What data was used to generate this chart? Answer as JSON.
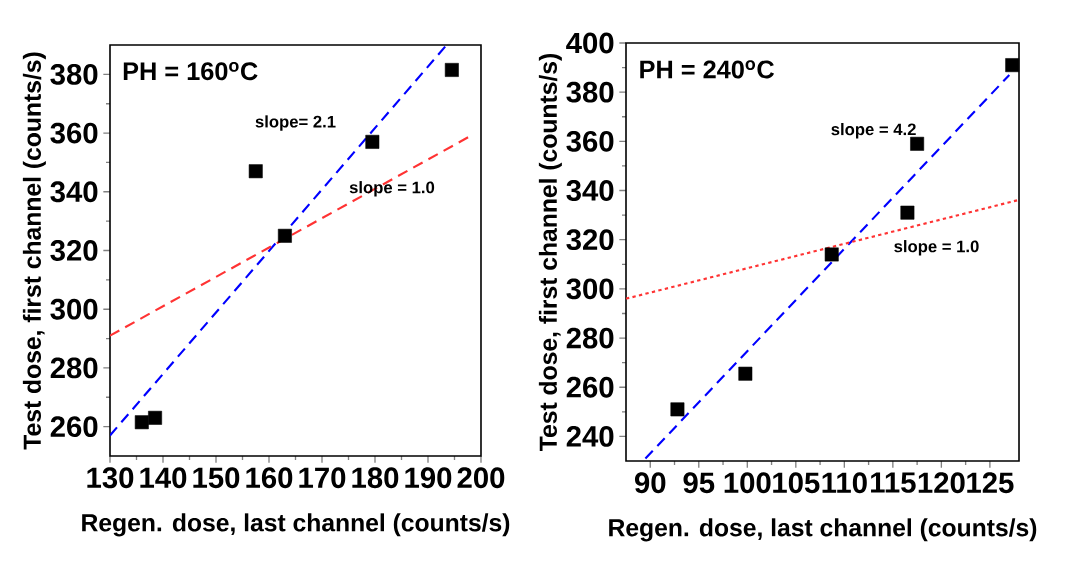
{
  "chart_data": [
    {
      "type": "scatter",
      "title": "PH = 160$^{o}$C",
      "xlabel": "Regen. dose, last channel (counts/s)",
      "ylabel": "Test dose, first channel (counts/s)",
      "xlim": [
        130,
        200
      ],
      "ylim": [
        250,
        390
      ],
      "xticks": [
        130,
        140,
        150,
        160,
        170,
        180,
        190,
        200
      ],
      "yticks": [
        260,
        280,
        300,
        320,
        340,
        360,
        380
      ],
      "grid": false,
      "marker": "square",
      "series": [
        {
          "color": "#000000",
          "x": [
            136,
            138.5,
            157.5,
            163,
            179.5,
            194.5
          ],
          "values": [
            261.5,
            263,
            347,
            325,
            357,
            381.5
          ]
        },
        {
          "type": "line",
          "color": "#0000ff",
          "line_style": "dashed",
          "marker": "none",
          "x": [
            130,
            193.5
          ],
          "values": [
            257,
            390
          ]
        },
        {
          "type": "line",
          "color": "#ff3333",
          "line_style": "dashed",
          "marker": "none",
          "x": [
            130,
            198
          ],
          "values": [
            291,
            359
          ]
        }
      ],
      "annotations": [
        "slope= 2.1",
        "slope = 1.0"
      ]
    },
    {
      "type": "scatter",
      "title": "PH = 240$^{o}$C",
      "xlabel": "Regen. dose, last channel (counts/s)",
      "ylabel": "Test dose, first channel (counts/s)",
      "xlim": [
        87.5,
        128
      ],
      "ylim": [
        230,
        400
      ],
      "xticks": [
        90,
        95,
        100,
        105,
        110,
        115,
        120,
        125
      ],
      "yticks": [
        240,
        260,
        280,
        300,
        320,
        340,
        360,
        380,
        400
      ],
      "grid": false,
      "marker": "square",
      "series": [
        {
          "color": "#000000",
          "x": [
            92.8,
            99.8,
            108.7,
            116.5,
            117.5,
            127.3
          ],
          "values": [
            251,
            265.5,
            314,
            331,
            359,
            391
          ]
        },
        {
          "type": "line",
          "color": "#0000ff",
          "line_style": "dashed",
          "marker": "none",
          "x": [
            89.5,
            127
          ],
          "values": [
            231,
            387
          ]
        },
        {
          "type": "line",
          "color": "#ff3333",
          "line_style": "dotted",
          "marker": "none",
          "x": [
            87.5,
            127.8
          ],
          "values": [
            296,
            336
          ]
        }
      ],
      "annotations": [
        "slope = 4.2",
        "slope = 1.0"
      ]
    }
  ]
}
